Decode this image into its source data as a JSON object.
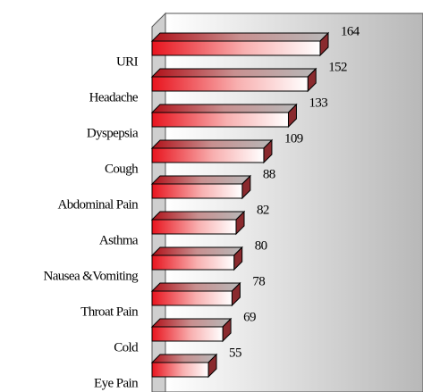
{
  "chart_data": {
    "type": "bar",
    "orientation": "horizontal",
    "categories": [
      "URI",
      "Headache",
      "Dyspepsia",
      "Cough",
      "Abdominal Pain",
      "Asthma",
      "Nausea &Vomiting",
      "Throat Pain",
      "Cold",
      "Eye Pain"
    ],
    "values": [
      164,
      152,
      133,
      109,
      88,
      82,
      80,
      78,
      69,
      55
    ],
    "color": "#e8141e"
  }
}
